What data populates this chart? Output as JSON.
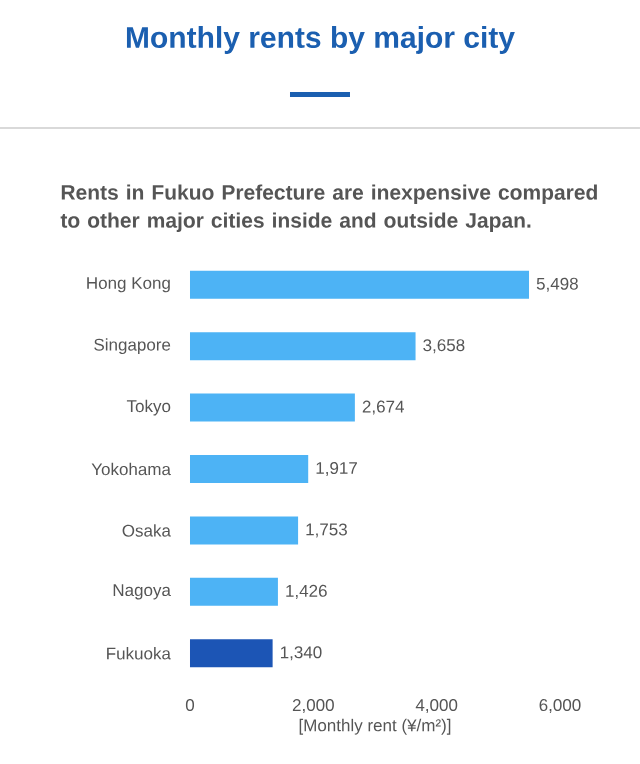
{
  "chart_data": {
    "type": "bar",
    "orientation": "horizontal",
    "title": "Monthly rents by major city",
    "subtitle": "Rents in Fukuo Prefecture are inexpensive compared to other major cities inside and outside Japan.",
    "xlabel": "[Monthly rent (¥/m²)]",
    "categories": [
      "Hong Kong",
      "Singapore",
      "Tokyo",
      "Yokohama",
      "Osaka",
      "Nagoya",
      "Fukuoka"
    ],
    "values": [
      5498,
      3658,
      2674,
      1917,
      1753,
      1426,
      1340
    ],
    "value_labels": [
      "5,498",
      "3,658",
      "2,674",
      "1,917",
      "1,753",
      "1,426",
      "1,340"
    ],
    "colors": [
      "#4db3f5",
      "#4db3f5",
      "#4db3f5",
      "#4db3f5",
      "#4db3f5",
      "#4db3f5",
      "#1c55b5"
    ],
    "xlim": [
      0,
      6000
    ],
    "xticks": [
      {
        "value": 0,
        "label": "0"
      },
      {
        "value": 2000,
        "label": "2,000"
      },
      {
        "value": 4000,
        "label": "4,000"
      },
      {
        "value": 6000,
        "label": "6,000"
      }
    ],
    "grid": false
  }
}
